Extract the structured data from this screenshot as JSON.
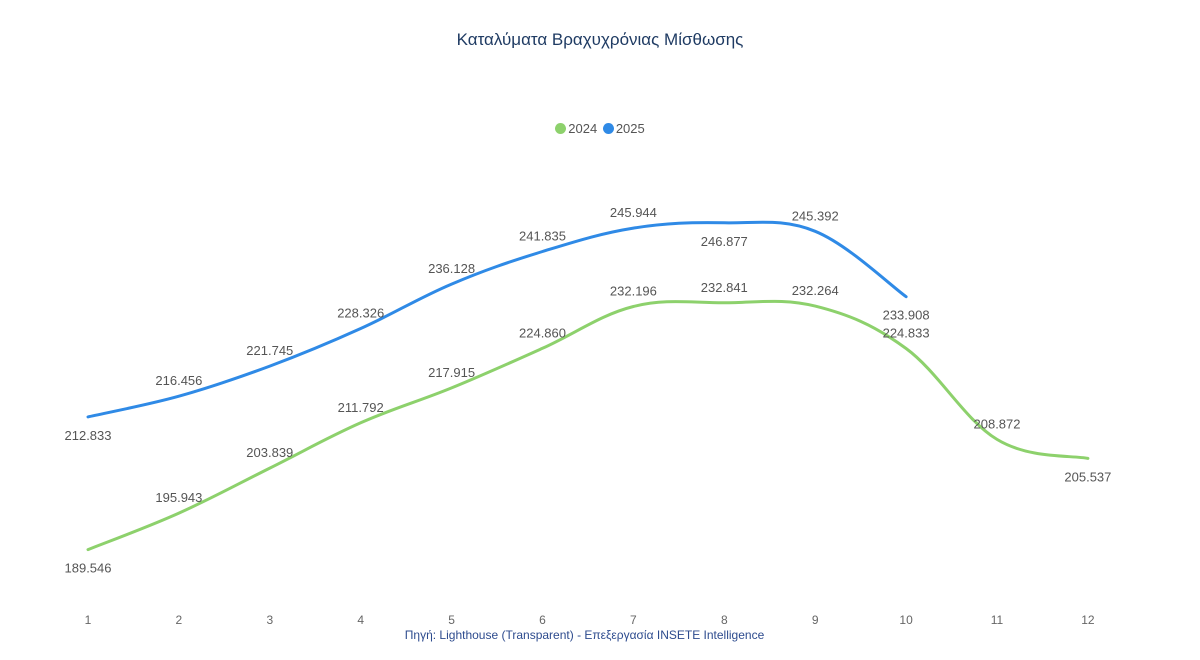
{
  "chart_data": {
    "type": "line",
    "title": "Καταλύματα Βραχυχρόνιας Μίσθωσης",
    "source": "Πηγή: Lighthouse (Transparent) - Επεξεργασία INSETE Intelligence",
    "categories": [
      "1",
      "2",
      "3",
      "4",
      "5",
      "6",
      "7",
      "8",
      "9",
      "10",
      "11",
      "12"
    ],
    "series": [
      {
        "name": "2024",
        "color": "#8dd16c",
        "values": [
          189546,
          195943,
          203839,
          211792,
          217915,
          224860,
          232196,
          232841,
          232264,
          224833,
          208872,
          205537
        ],
        "labels": [
          "189.546",
          "195.943",
          "203.839",
          "211.792",
          "217.915",
          "224.860",
          "232.196",
          "232.841",
          "232.264",
          "224.833",
          "208.872",
          "205.537"
        ]
      },
      {
        "name": "2025",
        "color": "#2f8ae6",
        "values": [
          212833,
          216456,
          221745,
          228326,
          236128,
          241835,
          245944,
          246877,
          245392,
          233908,
          null,
          null
        ],
        "labels": [
          "212.833",
          "216.456",
          "221.745",
          "228.326",
          "236.128",
          "241.835",
          "245.944",
          "246.877",
          "245.392",
          "233.908",
          "",
          ""
        ]
      }
    ],
    "legend_position": "top-center",
    "grid": false,
    "ylim": [
      180000,
      260000
    ]
  }
}
